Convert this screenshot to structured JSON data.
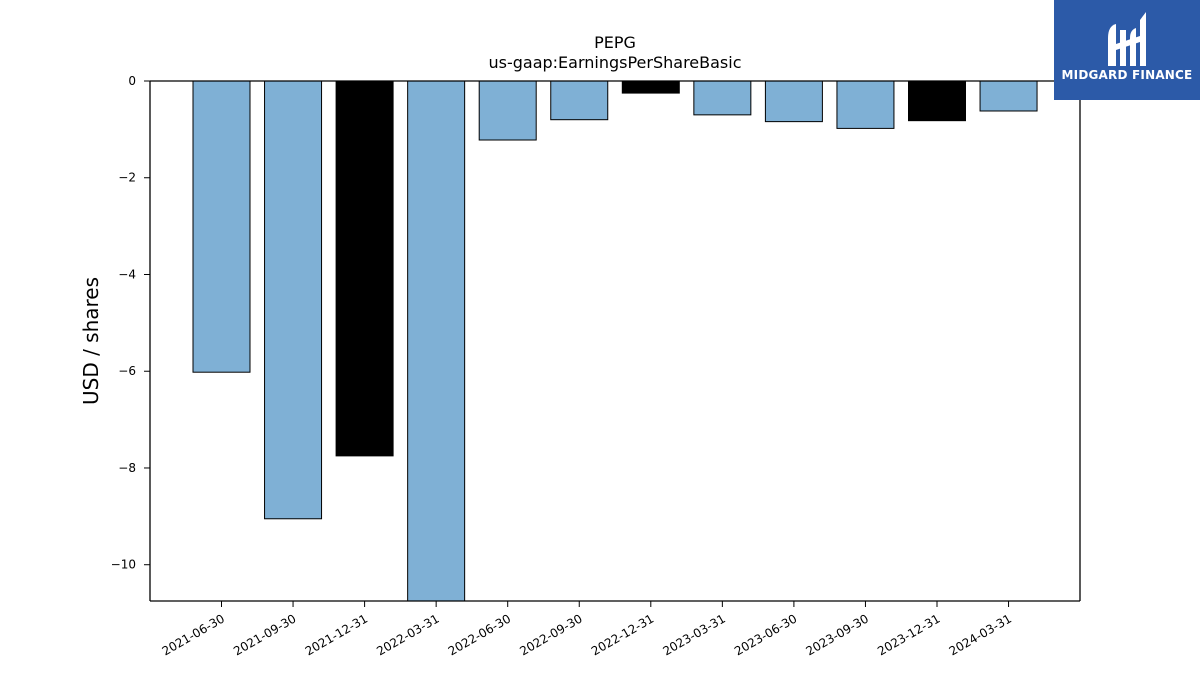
{
  "chart_data": {
    "type": "bar",
    "title": "PEPG",
    "subtitle": "us-gaap:EarningsPerShareBasic",
    "xlabel": "",
    "ylabel": "USD / shares",
    "categories": [
      "2021-06-30",
      "2021-09-30",
      "2021-12-31",
      "2022-03-31",
      "2022-06-30",
      "2022-09-30",
      "2022-12-31",
      "2023-03-31",
      "2023-06-30",
      "2023-09-30",
      "2023-12-31",
      "2024-03-31"
    ],
    "values": [
      -6.02,
      -9.05,
      -7.75,
      -10.75,
      -1.22,
      -0.8,
      -0.25,
      -0.7,
      -0.84,
      -0.98,
      -0.82,
      -0.62
    ],
    "highlight": [
      false,
      false,
      true,
      false,
      false,
      false,
      true,
      false,
      false,
      false,
      true,
      false
    ],
    "ylim": [
      -10.75,
      0
    ],
    "yticks": [
      0,
      -2,
      -4,
      -6,
      -8,
      -10
    ],
    "ytick_labels": [
      "0",
      "−2",
      "−4",
      "−6",
      "−8",
      "−10"
    ],
    "colors": {
      "bar": "#7fb0d5",
      "highlight": "#000000",
      "edge": "#000000"
    },
    "grid": false
  },
  "logo": {
    "text": "MIDGARD FINANCE",
    "color": "#2c5aa8"
  }
}
